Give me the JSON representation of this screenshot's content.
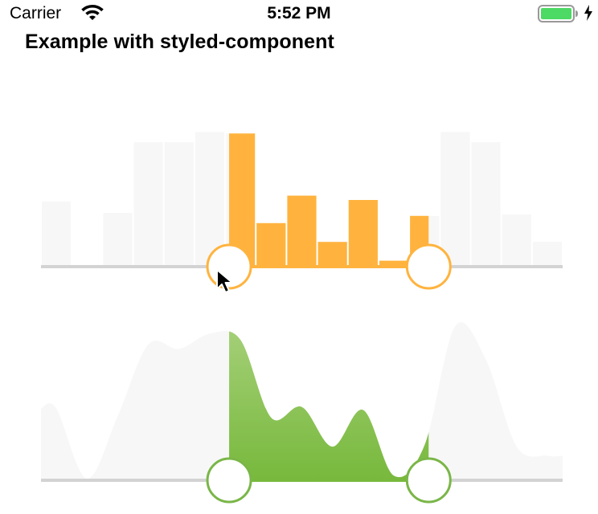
{
  "status_bar": {
    "carrier": "Carrier",
    "time": "5:52 PM",
    "wifi_icon": "wifi-icon",
    "battery_icon": "battery-icon",
    "charging_icon": "charging-bolt-icon",
    "battery_color": "#4cd964"
  },
  "page": {
    "title": "Example with styled-component"
  },
  "colors": {
    "inactive": "#f7f7f7",
    "bar_active": "#ffb33e",
    "area_active_top": "#a6d07a",
    "area_active_bottom": "#78b93d",
    "handle_orange": "#ffb33e",
    "handle_green": "#7ab648",
    "track": "#d3d3d3"
  },
  "chart_data": [
    {
      "type": "bar",
      "selection_range": [
        6,
        12
      ],
      "values": [
        44,
        0,
        36,
        85,
        85,
        92,
        91,
        29,
        48,
        16,
        45,
        3,
        34,
        92,
        85,
        35,
        16
      ]
    },
    {
      "type": "area",
      "selection_range": [
        6,
        12
      ],
      "x": [
        0,
        1,
        2,
        3,
        4,
        5,
        6,
        7,
        8,
        9,
        10,
        11,
        12,
        13,
        14,
        15,
        16
      ],
      "values": [
        46,
        0,
        41,
        88,
        85,
        95,
        91,
        40,
        47,
        21,
        45,
        2,
        22,
        100,
        78,
        21,
        15
      ]
    }
  ]
}
